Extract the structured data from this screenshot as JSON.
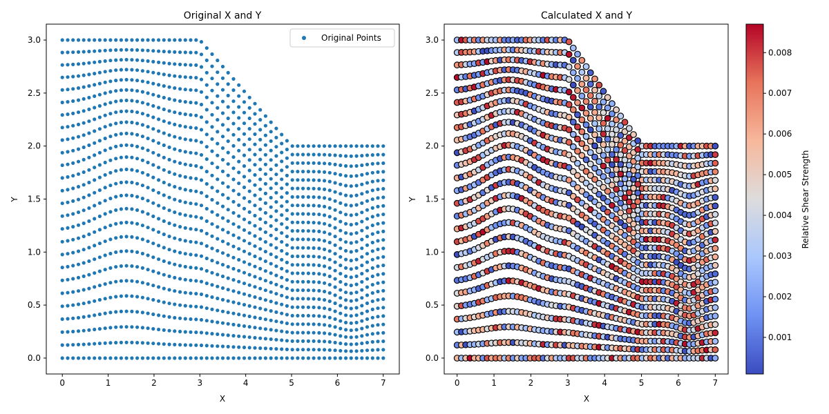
{
  "colors": {
    "points": "#1f77b4",
    "marker_edge": "#000000",
    "colormap": [
      "#3b4cc0",
      "#6f92f3",
      "#aac7fd",
      "#dddcdc",
      "#f7b89c",
      "#e7745b",
      "#b40426"
    ]
  },
  "chart_data": [
    {
      "type": "scatter",
      "title": "Original X and Y",
      "xlabel": "X",
      "ylabel": "Y",
      "xlim": [
        -0.35,
        7.35
      ],
      "ylim": [
        -0.15,
        3.15
      ],
      "xticks": [
        "0",
        "1",
        "2",
        "3",
        "4",
        "5",
        "6",
        "7"
      ],
      "yticks": [
        "0.0",
        "0.5",
        "1.0",
        "1.5",
        "2.0",
        "2.5",
        "3.0"
      ],
      "legend": {
        "label": "Original Points",
        "location": "upper right"
      },
      "grid": false,
      "data_description": {
        "rows": 26,
        "y_range": [
          0,
          3
        ],
        "columns_per_row": 61,
        "x_range": [
          0,
          7
        ],
        "surface": [
          [
            0,
            3
          ],
          [
            3,
            3
          ],
          [
            5,
            2
          ],
          [
            7,
            2
          ]
        ]
      }
    },
    {
      "type": "scatter",
      "title": "Calculated X and Y",
      "xlabel": "X",
      "ylabel": "Y",
      "xlim": [
        -0.35,
        7.35
      ],
      "ylim": [
        -0.15,
        3.15
      ],
      "xticks": [
        "0",
        "1",
        "2",
        "3",
        "4",
        "5",
        "6",
        "7"
      ],
      "yticks": [
        "0.0",
        "0.5",
        "1.0",
        "1.5",
        "2.0",
        "2.5",
        "3.0"
      ],
      "grid": false,
      "colorbar": {
        "label": "Relative Shear Strength",
        "range": [
          0.0001,
          0.0087
        ],
        "ticks": [
          "0.001",
          "0.002",
          "0.003",
          "0.004",
          "0.005",
          "0.006",
          "0.007",
          "0.008"
        ],
        "colormap": "coolwarm"
      },
      "data_description": {
        "rows": 26,
        "y_range": [
          0,
          3
        ],
        "columns_per_row": 61,
        "x_range": [
          0,
          7
        ],
        "surface": [
          [
            0,
            3
          ],
          [
            3,
            3
          ],
          [
            5,
            2
          ],
          [
            7,
            2
          ]
        ]
      }
    }
  ]
}
